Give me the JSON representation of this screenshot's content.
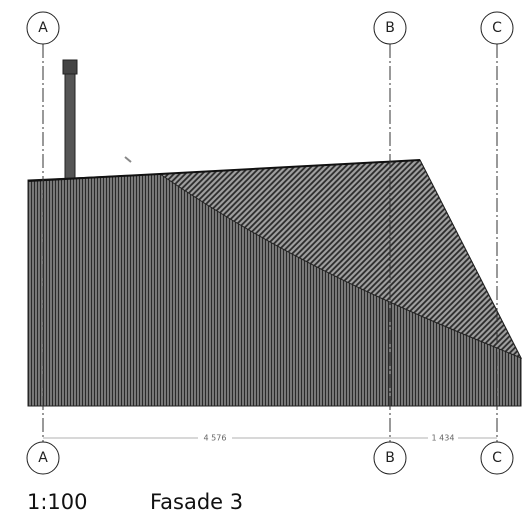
{
  "grid_lines": [
    {
      "label": "A"
    },
    {
      "label": "B"
    },
    {
      "label": "C"
    }
  ],
  "dimensions": [
    "4 576",
    "1 434"
  ],
  "scale": "1:100",
  "title": "Fasade 3"
}
